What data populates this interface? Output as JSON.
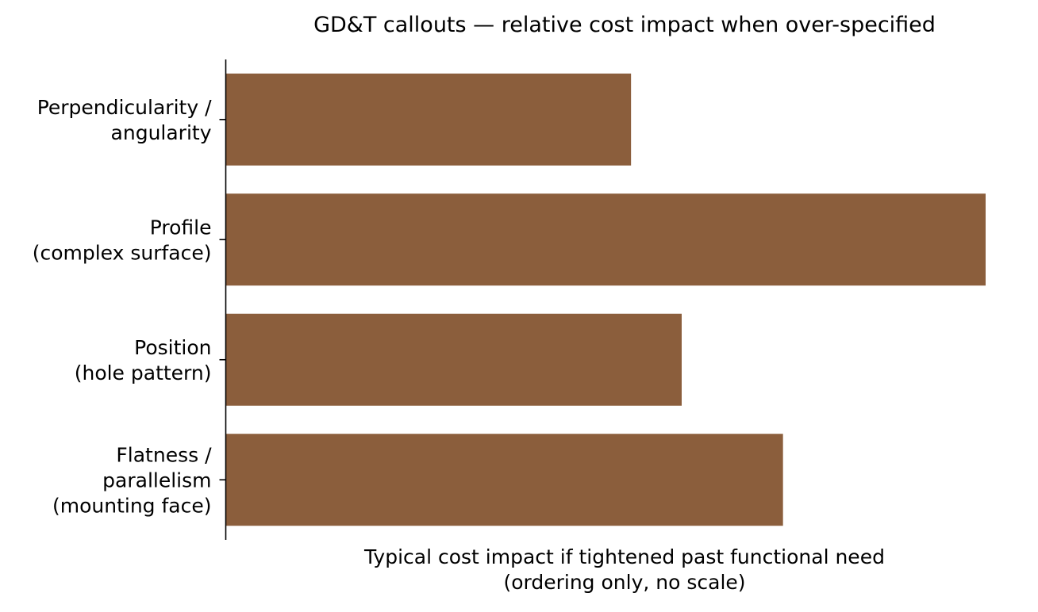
{
  "chart_data": {
    "type": "bar",
    "orientation": "horizontal",
    "title": "GD&T callouts — relative cost impact when over-specified",
    "xlabel": "Typical cost impact if tightened past functional need\n(ordering only, no scale)",
    "ylabel": "",
    "categories": [
      "Perpendicularity /\nangularity",
      "Profile\n(complex surface)",
      "Position\n(hole pattern)",
      "Flatness /\nparallelism\n(mounting face)"
    ],
    "values": [
      4.0,
      7.5,
      4.5,
      5.5
    ],
    "xlim": [
      0,
      7.5
    ],
    "x_ticks_shown": false,
    "grid": false,
    "legend": "none",
    "bar_color": "#8b5e3c"
  }
}
